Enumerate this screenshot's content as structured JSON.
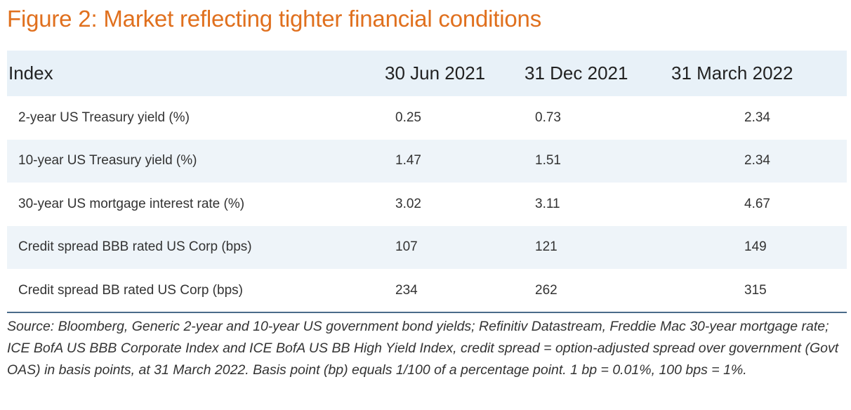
{
  "chart_data": {
    "type": "table",
    "title": "Figure 2: Market reflecting tighter financial conditions",
    "columns": [
      "Index",
      "30 Jun 2021",
      "31 Dec 2021",
      "31 March 2022"
    ],
    "rows": [
      [
        "2-year US Treasury yield (%)",
        "0.25",
        "0.73",
        "2.34"
      ],
      [
        "10-year US Treasury yield (%)",
        "1.47",
        "1.51",
        "2.34"
      ],
      [
        "30-year US mortgage interest rate (%)",
        "3.02",
        "3.11",
        "4.67"
      ],
      [
        "Credit spread BBB rated US Corp (bps)",
        "107",
        "121",
        "149"
      ],
      [
        "Credit spread BB rated US Corp (bps)",
        "234",
        "262",
        "315"
      ]
    ],
    "source": "Source: Bloomberg, Generic 2-year and 10-year US government bond yields; Refinitiv Datastream, Freddie Mac 30-year mortgage rate; ICE BofA US BBB Corporate Index and ICE BofA US BB High Yield Index, credit spread = option-adjusted spread over government (Govt OAS) in basis points, at 31 March 2022. Basis point (bp) equals 1/100 of a percentage point. 1 bp = 0.01%, 100 bps = 1%."
  },
  "colors": {
    "title": "#e0701e",
    "header_bg": "#e8f1f8",
    "alt_row_bg": "#eef4f9",
    "rule": "#4a6b8a"
  }
}
